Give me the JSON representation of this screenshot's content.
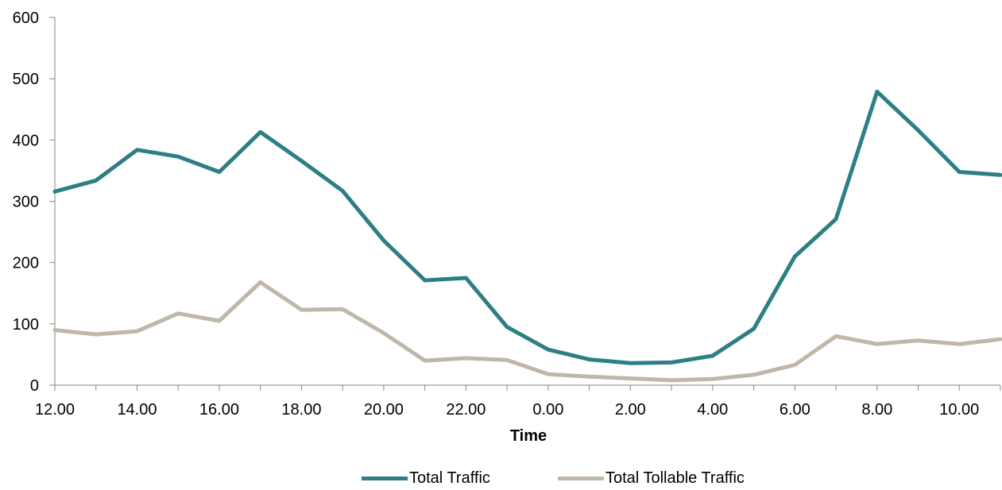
{
  "chart_data": {
    "type": "line",
    "xlabel": "Time",
    "ylabel": "",
    "ylim": [
      0,
      600
    ],
    "yticks": [
      0,
      100,
      200,
      300,
      400,
      500,
      600
    ],
    "x": [
      "12.00",
      "13.00",
      "14.00",
      "15.00",
      "16.00",
      "17.00",
      "18.00",
      "19.00",
      "20.00",
      "21.00",
      "22.00",
      "23.00",
      "0.00",
      "1.00",
      "2.00",
      "3.00",
      "4.00",
      "5.00",
      "6.00",
      "7.00",
      "8.00",
      "9.00",
      "10.00",
      "11.00"
    ],
    "xtick_labels": [
      "12.00",
      "",
      "14.00",
      "",
      "16.00",
      "",
      "18.00",
      "",
      "20.00",
      "",
      "22.00",
      "",
      "0.00",
      "",
      "2.00",
      "",
      "4.00",
      "",
      "6.00",
      "",
      "8.00",
      "",
      "10.00",
      ""
    ],
    "grid": false,
    "legend_position": "bottom",
    "series": [
      {
        "name": "Total Traffic",
        "color": "#2E7F85",
        "values": [
          316,
          334,
          384,
          373,
          348,
          413,
          366,
          317,
          236,
          171,
          175,
          95,
          58,
          42,
          36,
          37,
          48,
          92,
          210,
          271,
          479,
          416,
          348,
          343
        ]
      },
      {
        "name": "Total Tollable Traffic",
        "color": "#BFB7A9",
        "values": [
          90,
          83,
          88,
          117,
          105,
          168,
          123,
          124,
          85,
          40,
          44,
          41,
          18,
          14,
          11,
          8,
          10,
          17,
          33,
          80,
          67,
          73,
          67,
          75
        ]
      }
    ]
  }
}
